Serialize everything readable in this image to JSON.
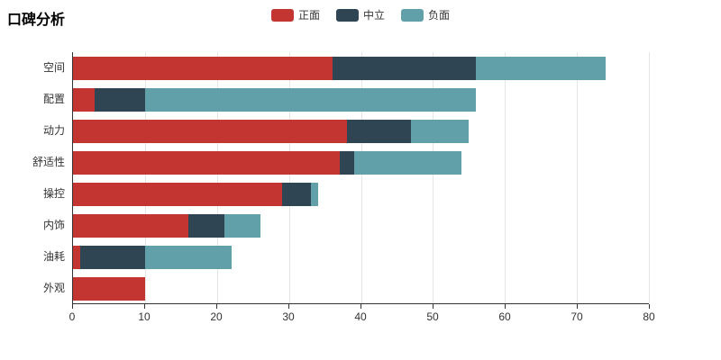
{
  "title": "口碑分析",
  "legend": [
    {
      "label": "正面",
      "color": "#c23531"
    },
    {
      "label": "中立",
      "color": "#2f4554"
    },
    {
      "label": "负面",
      "color": "#61a0a8"
    }
  ],
  "chart_data": {
    "type": "bar",
    "orientation": "horizontal",
    "stacked": true,
    "title": "口碑分析",
    "categories": [
      "空间",
      "配置",
      "动力",
      "舒适性",
      "操控",
      "内饰",
      "油耗",
      "外观"
    ],
    "series": [
      {
        "name": "正面",
        "color": "#c23531",
        "values": [
          36,
          3,
          38,
          37,
          29,
          16,
          1,
          10
        ]
      },
      {
        "name": "中立",
        "color": "#2f4554",
        "values": [
          20,
          7,
          9,
          2,
          4,
          5,
          9,
          0
        ]
      },
      {
        "name": "负面",
        "color": "#61a0a8",
        "values": [
          18,
          46,
          8,
          15,
          1,
          5,
          12,
          0
        ]
      }
    ],
    "xlabel": "",
    "ylabel": "",
    "xlim": [
      0,
      80
    ],
    "xticks": [
      0,
      10,
      20,
      30,
      40,
      50,
      60,
      70,
      80
    ],
    "grid": true,
    "legend_position": "top-center"
  }
}
